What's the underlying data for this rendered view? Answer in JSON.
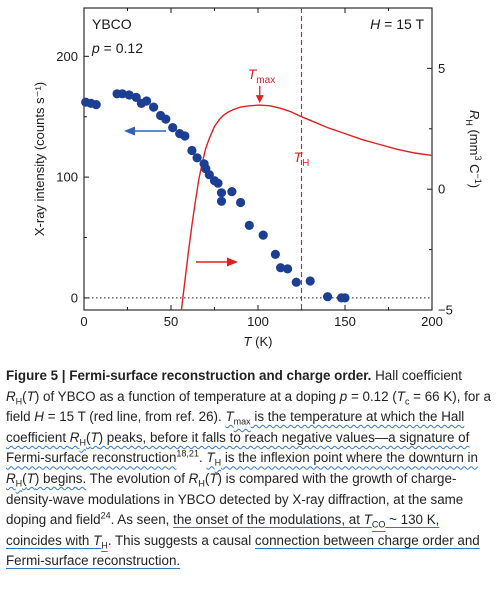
{
  "chart_data": {
    "type": "scatter",
    "xlabel": "T (K)",
    "ylabel": "X-ray intensity (counts s⁻¹)",
    "y2label": "R_H (mm³ C⁻¹)",
    "xlim": [
      0,
      200
    ],
    "ylim": [
      -10,
      240
    ],
    "y2lim": [
      -5,
      7.5
    ],
    "x_ticks": [
      "0",
      "50",
      "100",
      "150",
      "200"
    ],
    "y_ticks": [
      "0",
      "100",
      "200"
    ],
    "y2_ticks": [
      "−5",
      "0",
      "5"
    ],
    "annotations": {
      "material": "YBCO",
      "doping": "p = 0.12",
      "field": "H = 15 T",
      "tmax": "T",
      "tmax_sub": "max",
      "th": "T",
      "th_sub": "H"
    },
    "th_line_x": 125,
    "tmax_x": 101,
    "zero_line_y": 0,
    "xray_series": {
      "name": "X-ray intensity",
      "color": "#1c3f94",
      "x": [
        1,
        4,
        7,
        19,
        22,
        26,
        30,
        33,
        36,
        40,
        44,
        47,
        51,
        55,
        58,
        62,
        65,
        69,
        70,
        72,
        75,
        77,
        79,
        79,
        85,
        90,
        95,
        103,
        110,
        113,
        117,
        122,
        130,
        140,
        148,
        150
      ],
      "y": [
        162,
        161,
        160,
        169,
        169,
        168,
        166,
        161,
        163,
        158,
        151,
        148,
        141,
        136,
        134,
        122,
        116,
        111,
        107,
        102,
        97,
        95,
        87,
        80,
        88,
        79,
        60,
        52,
        36,
        25,
        24,
        13,
        14,
        1,
        0,
        0
      ]
    },
    "hall_series": {
      "name": "R_H(T)",
      "color": "#e02020",
      "axis": "right",
      "x": [
        56,
        58,
        60,
        62,
        64,
        66,
        68,
        70,
        72,
        75,
        78,
        80,
        83,
        86,
        90,
        95,
        101,
        107,
        113,
        119,
        125,
        130,
        140,
        150,
        160,
        170,
        180,
        190,
        200
      ],
      "y": [
        -5,
        -3.8,
        -2.6,
        -1.5,
        -0.5,
        0.4,
        1.1,
        1.7,
        2.1,
        2.6,
        2.9,
        3.05,
        3.2,
        3.3,
        3.4,
        3.45,
        3.48,
        3.45,
        3.35,
        3.2,
        3.0,
        2.85,
        2.55,
        2.3,
        2.05,
        1.85,
        1.65,
        1.5,
        1.4
      ]
    }
  },
  "caption": {
    "fig_label": "Figure 5 | Fermi-surface reconstruction and charge order.",
    "segments": [
      {
        "t": " Hall coefficient ",
        "s": ""
      },
      {
        "t": "R",
        "s": "i"
      },
      {
        "t": "H",
        "s": "sub"
      },
      {
        "t": "(",
        "s": ""
      },
      {
        "t": "T",
        "s": "i"
      },
      {
        "t": ") of YBCO as a function of temperature at a doping ",
        "s": ""
      },
      {
        "t": "p",
        "s": "i"
      },
      {
        "t": " = 0.12 (",
        "s": ""
      },
      {
        "t": "T",
        "s": "i"
      },
      {
        "t": "c",
        "s": "sub"
      },
      {
        "t": " = 66 K), for a field ",
        "s": ""
      },
      {
        "t": "H",
        "s": "i"
      },
      {
        "t": " = 15 T (red line, from ref. 26). ",
        "s": ""
      },
      {
        "t": "T",
        "s": "i w"
      },
      {
        "t": "max",
        "s": "sub w"
      },
      {
        "t": " is the temperature at which the Hall coefficient ",
        "s": "w"
      },
      {
        "t": "R",
        "s": "i w"
      },
      {
        "t": "H",
        "s": "sub w"
      },
      {
        "t": "(",
        "s": "w"
      },
      {
        "t": "T",
        "s": "i w"
      },
      {
        "t": ") peaks, before it falls to reach negative values—a signature of Fermi-surface reconstruction",
        "s": "w"
      },
      {
        "t": "18,21",
        "s": "sup"
      },
      {
        "t": ". ",
        "s": ""
      },
      {
        "t": "T",
        "s": "i w"
      },
      {
        "t": "H",
        "s": "sub w"
      },
      {
        "t": " is the inflexion point where the downturn in ",
        "s": "w"
      },
      {
        "t": "R",
        "s": "i w"
      },
      {
        "t": "H",
        "s": "sub w"
      },
      {
        "t": "(",
        "s": "w"
      },
      {
        "t": "T",
        "s": "i w"
      },
      {
        "t": ") begins.",
        "s": "w"
      },
      {
        "t": " The evolution of ",
        "s": ""
      },
      {
        "t": "R",
        "s": "i"
      },
      {
        "t": "H",
        "s": "sub"
      },
      {
        "t": "(",
        "s": ""
      },
      {
        "t": "T",
        "s": "i"
      },
      {
        "t": ") is compared with the growth of charge-density-wave modulations in YBCO detected by X-ray diffraction, at the same doping and field",
        "s": ""
      },
      {
        "t": "24",
        "s": "sup"
      },
      {
        "t": ". As seen, ",
        "s": ""
      },
      {
        "t": "the onset of the modulations, at ",
        "s": "u"
      },
      {
        "t": "T",
        "s": "i u"
      },
      {
        "t": "CO",
        "s": "sub u"
      },
      {
        "t": " ~ 130 K, coincides with ",
        "s": "u"
      },
      {
        "t": "T",
        "s": "i u"
      },
      {
        "t": "H",
        "s": "sub u"
      },
      {
        "t": ". This suggests a causal ",
        "s": ""
      },
      {
        "t": "connection between charge order and Fermi-surface reconstruction.",
        "s": "u"
      }
    ]
  }
}
